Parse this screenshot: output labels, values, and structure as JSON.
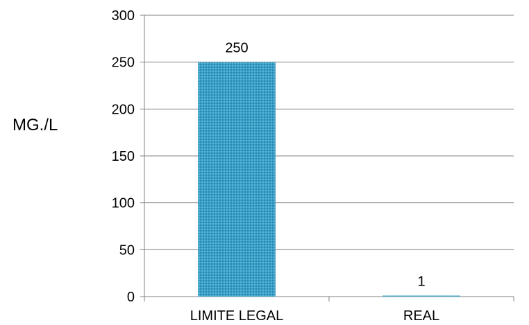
{
  "chart_data": {
    "type": "bar",
    "categories": [
      "LIMITE LEGAL",
      "REAL"
    ],
    "values": [
      250,
      1
    ],
    "data_labels": [
      "250",
      "1"
    ],
    "title": "",
    "xlabel": "",
    "ylabel": "MG./L",
    "ylim": [
      0,
      300
    ],
    "yticks": [
      0,
      50,
      100,
      150,
      200,
      250,
      300
    ],
    "ytick_labels": [
      "0",
      "50",
      "100",
      "150",
      "200",
      "250",
      "300"
    ],
    "grid": true,
    "legend": "none",
    "bar_color": "#2F9BC4",
    "gridline_color": "#808080"
  }
}
